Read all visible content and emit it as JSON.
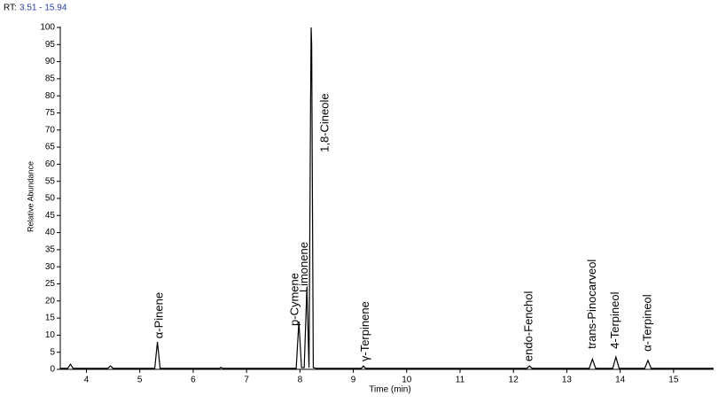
{
  "chart_data": {
    "type": "line",
    "header_label": "RT:",
    "header_range": "3.51 - 15.94",
    "xlabel": "Time (min)",
    "ylabel": "Relative Abundance",
    "xlim": [
      3.51,
      15.75
    ],
    "ylim": [
      0,
      100
    ],
    "xticks": [
      4,
      5,
      6,
      7,
      8,
      9,
      10,
      11,
      12,
      13,
      14,
      15
    ],
    "yticks": [
      0,
      5,
      10,
      15,
      20,
      25,
      30,
      35,
      40,
      45,
      50,
      55,
      60,
      65,
      70,
      75,
      80,
      85,
      90,
      95,
      100
    ],
    "series": [
      {
        "color": "#000000",
        "x": [
          3.51,
          3.65,
          3.7,
          3.75,
          4.4,
          4.45,
          4.5,
          5.28,
          5.33,
          5.38,
          6.5,
          6.52,
          6.55,
          7.93,
          7.98,
          8.03,
          8.08,
          8.13,
          8.17,
          8.2,
          8.21,
          8.22,
          8.25,
          8.3,
          9.15,
          9.19,
          9.23,
          12.25,
          12.3,
          12.35,
          13.42,
          13.48,
          13.54,
          13.86,
          13.92,
          13.98,
          14.46,
          14.52,
          14.58,
          15.75
        ],
        "values": [
          0.3,
          0.3,
          1.5,
          0.3,
          0.3,
          1,
          0.3,
          0.3,
          8,
          0.3,
          0.3,
          0.6,
          0.3,
          0.3,
          14,
          0.5,
          0.5,
          24,
          0.5,
          79,
          100,
          95,
          0.5,
          0.3,
          0.3,
          1,
          0.3,
          0.3,
          1,
          0.3,
          0.3,
          3,
          0.3,
          0.3,
          3.6,
          0.3,
          0.3,
          2.6,
          0.3,
          0.3
        ]
      }
    ],
    "annotations": [
      {
        "text": "α-Pinene",
        "x": 5.37,
        "y": 9
      },
      {
        "text": "p-Cymene",
        "x": 7.91,
        "y": 12.7
      },
      {
        "text": "Limonene",
        "x": 8.09,
        "y": 22.5
      },
      {
        "text": "1,8-Cineole",
        "x": 8.48,
        "y": 63.5
      },
      {
        "text": "γ-Terpinene",
        "x": 9.23,
        "y": 2.3
      },
      {
        "text": "endo-Fenchol",
        "x": 12.3,
        "y": 2.3
      },
      {
        "text": "trans-Pinocarveol",
        "x": 13.48,
        "y": 6
      },
      {
        "text": "4-Terpineol",
        "x": 13.92,
        "y": 6
      },
      {
        "text": "α-Terpineol",
        "x": 14.52,
        "y": 5.2
      }
    ]
  }
}
